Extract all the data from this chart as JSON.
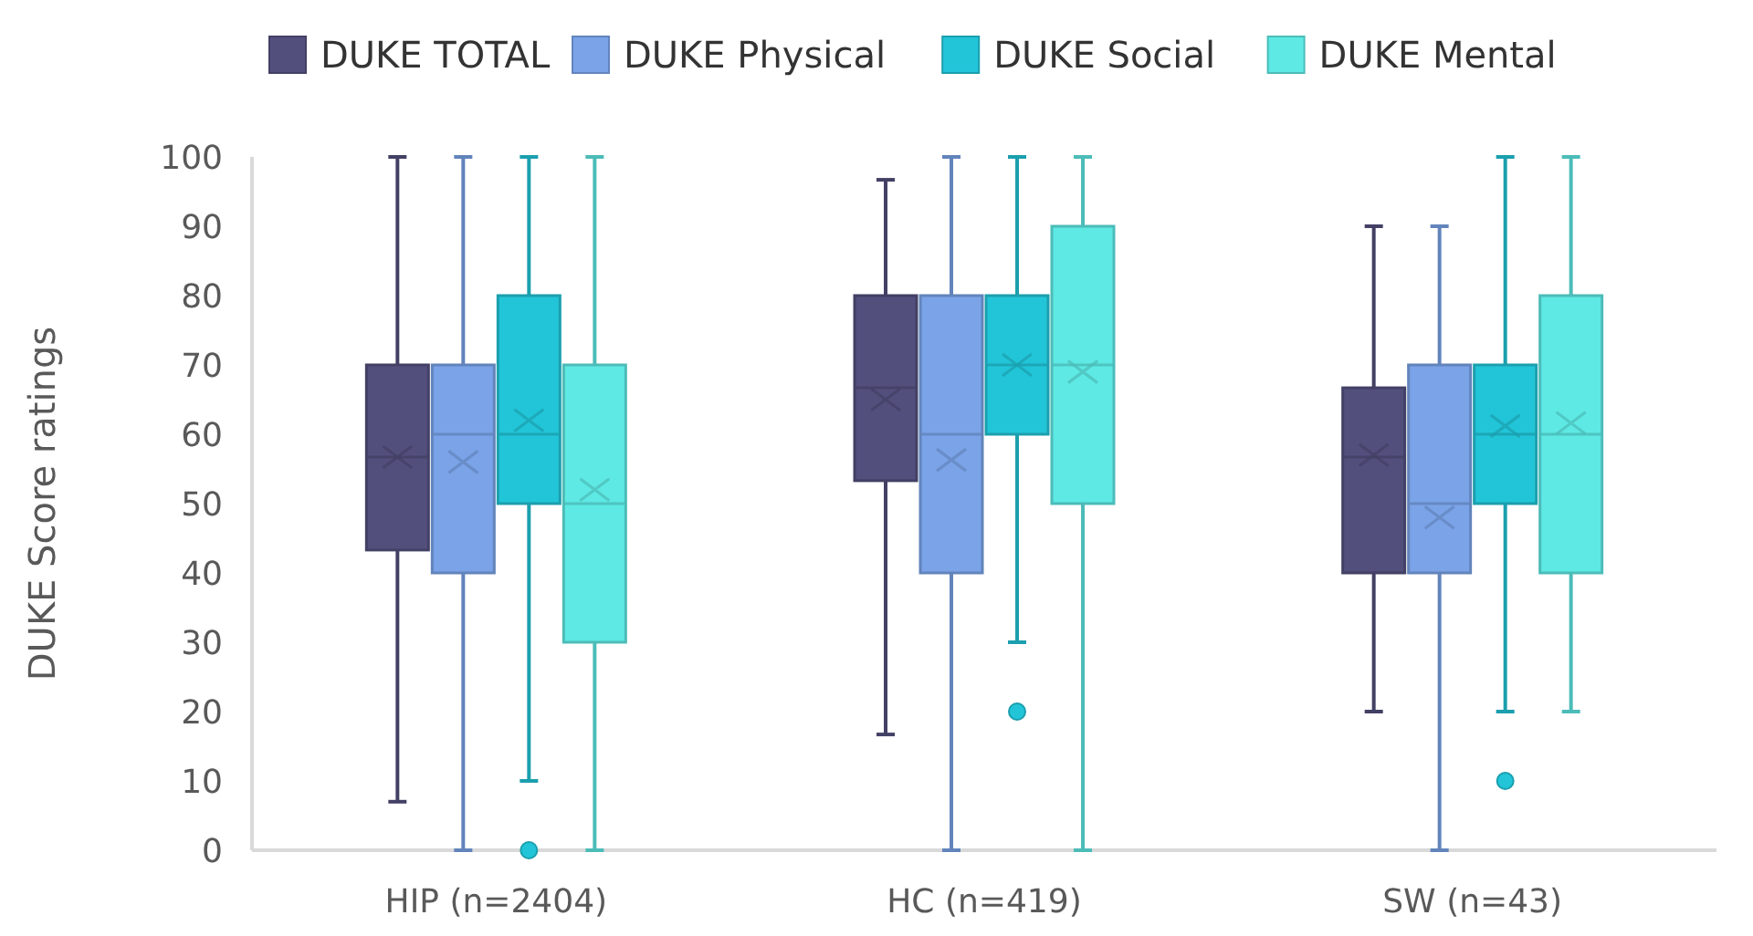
{
  "chart_data": {
    "type": "box",
    "ylabel": "DUKE Score ratings",
    "categories": [
      "HIP (n=2404)",
      "HC (n=419)",
      "SW (n=43)"
    ],
    "ylim": [
      0,
      100
    ],
    "yticks": [
      0,
      10,
      20,
      30,
      40,
      50,
      60,
      70,
      80,
      90,
      100
    ],
    "legend": "top",
    "grid": false,
    "marker": "cross",
    "series": [
      {
        "name": "DUKE TOTAL",
        "color": "#534f7d",
        "boxes": [
          {
            "low": 7,
            "q1": 43.3,
            "median": 56.7,
            "q3": 70,
            "high": 100,
            "mean": 56.7
          },
          {
            "low": 16.7,
            "q1": 53.3,
            "median": 66.7,
            "q3": 80,
            "high": 96.7,
            "mean": 65
          },
          {
            "low": 20,
            "q1": 40,
            "median": 56.7,
            "q3": 66.7,
            "high": 90,
            "mean": 57
          }
        ]
      },
      {
        "name": "DUKE Physical",
        "color": "#7aa3e8",
        "boxes": [
          {
            "low": 0,
            "q1": 40,
            "median": 60,
            "q3": 70,
            "high": 100,
            "mean": 56
          },
          {
            "low": 0,
            "q1": 40,
            "median": 60,
            "q3": 80,
            "high": 100,
            "mean": 56.3
          },
          {
            "low": 0,
            "q1": 40,
            "median": 50,
            "q3": 70,
            "high": 90,
            "mean": 48
          }
        ]
      },
      {
        "name": "DUKE Social",
        "color": "#22c5d8",
        "boxes": [
          {
            "low": 10,
            "q1": 50,
            "median": 60,
            "q3": 80,
            "high": 100,
            "mean": 62,
            "outliers": [
              0
            ]
          },
          {
            "low": 30,
            "q1": 60,
            "median": 70,
            "q3": 80,
            "high": 100,
            "mean": 70,
            "outliers": [
              20
            ]
          },
          {
            "low": 20,
            "q1": 50,
            "median": 60,
            "q3": 70,
            "high": 100,
            "mean": 61.2,
            "outliers": [
              10
            ]
          }
        ]
      },
      {
        "name": "DUKE Mental",
        "color": "#5ee9e4",
        "boxes": [
          {
            "low": 0,
            "q1": 30,
            "median": 50,
            "q3": 70,
            "high": 100,
            "mean": 52
          },
          {
            "low": 0,
            "q1": 50,
            "median": 70,
            "q3": 90,
            "high": 100,
            "mean": 69
          },
          {
            "low": 20,
            "q1": 40,
            "median": 60,
            "q3": 80,
            "high": 100,
            "mean": 61.6
          }
        ]
      }
    ]
  }
}
